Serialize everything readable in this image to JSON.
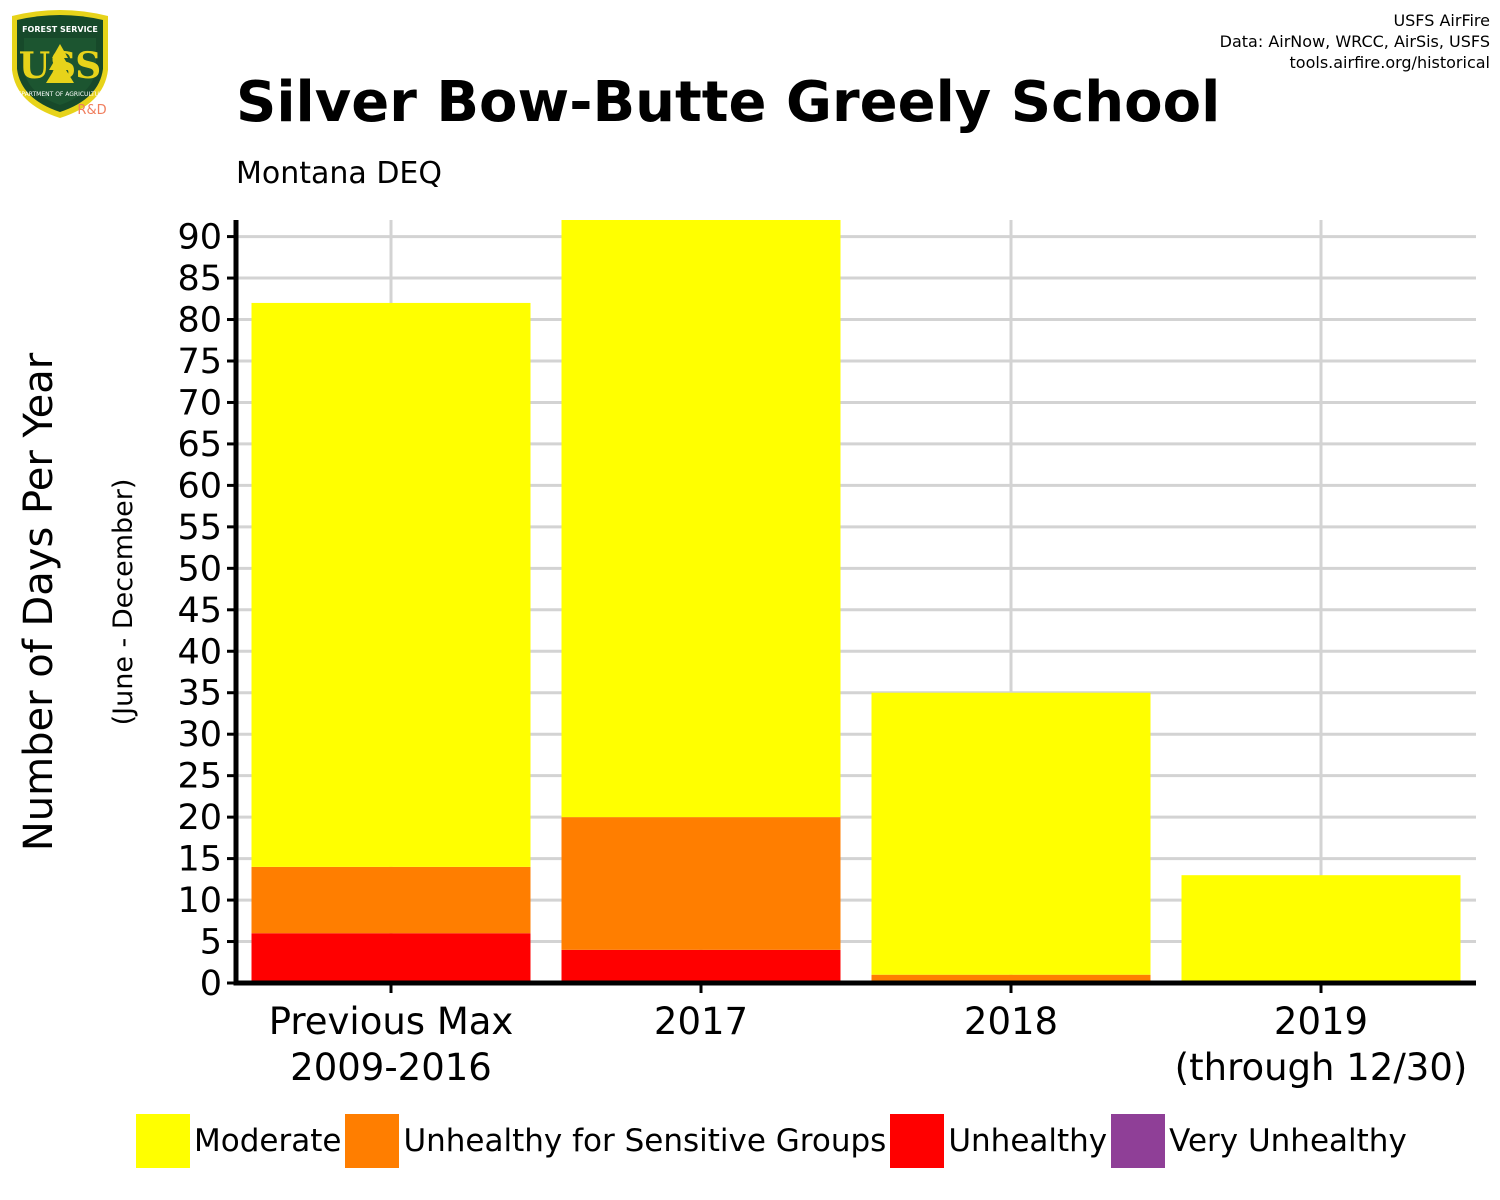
{
  "logo": {
    "icon": "usfs-shield-logo",
    "top_text": "FOREST SERVICE",
    "letters": "USS",
    "bottom_text": "DEPARTMENT OF AGRICULTURE",
    "rd_label": "R&D"
  },
  "credits": {
    "line1": "USFS AirFire",
    "line2": "Data: AirNow, WRCC, AirSis, USFS",
    "line3": "tools.airfire.org/historical"
  },
  "title": "Silver Bow-Butte Greely School",
  "subtitle": "Montana DEQ",
  "chart_data": {
    "type": "bar",
    "stacked": true,
    "ylabel": "Number of Days Per Year",
    "ylabel_sub": "(June - December)",
    "ylim": [
      0,
      92
    ],
    "yticks": [
      0,
      5,
      10,
      15,
      20,
      25,
      30,
      35,
      40,
      45,
      50,
      55,
      60,
      65,
      70,
      75,
      80,
      85,
      90
    ],
    "grid": true,
    "categories": [
      [
        "Previous Max",
        "2009-2016"
      ],
      [
        "2017"
      ],
      [
        "2018"
      ],
      [
        "2019",
        "(through 12/30)"
      ]
    ],
    "series": [
      {
        "name": "Unhealthy",
        "color": "#ff0000",
        "values": [
          6,
          4,
          0,
          0
        ]
      },
      {
        "name": "Unhealthy for Sensitive Groups",
        "color": "#ff7e00",
        "values": [
          8,
          16,
          1,
          0
        ]
      },
      {
        "name": "Moderate",
        "color": "#ffff00",
        "values": [
          68,
          72,
          34,
          13
        ]
      },
      {
        "name": "Very Unhealthy",
        "color": "#8f3f97",
        "values": [
          0,
          0,
          0,
          0
        ]
      }
    ],
    "legend_position": "bottom",
    "legend": [
      {
        "label": "Moderate",
        "color": "#ffff00"
      },
      {
        "label": "Unhealthy for Sensitive Groups",
        "color": "#ff7e00"
      },
      {
        "label": "Unhealthy",
        "color": "#ff0000"
      },
      {
        "label": "Very Unhealthy",
        "color": "#8f3f97"
      }
    ]
  }
}
